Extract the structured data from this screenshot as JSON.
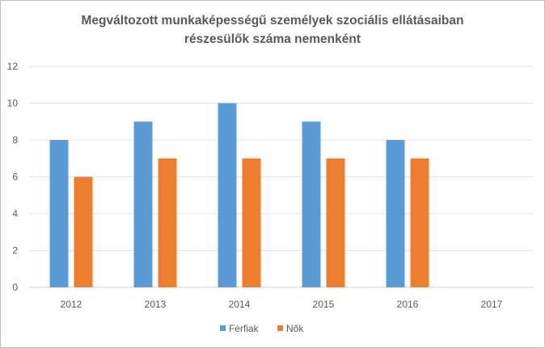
{
  "chart_data": {
    "type": "bar",
    "title": [
      "Megváltozott munkaképességű személyek szociális ellátásaiban",
      "részesülők száma nemenként"
    ],
    "categories": [
      "2012",
      "2013",
      "2014",
      "2015",
      "2016",
      "2017"
    ],
    "series": [
      {
        "name": "Férfiak",
        "color": "#5b9bd5",
        "values": [
          8,
          9,
          10,
          9,
          8,
          null
        ]
      },
      {
        "name": "Nők",
        "color": "#ed7d31",
        "values": [
          6,
          7,
          7,
          7,
          7,
          null
        ]
      }
    ],
    "xlabel": "",
    "ylabel": "",
    "ylim": [
      0,
      12
    ],
    "yticks": [
      "0",
      "2",
      "4",
      "6",
      "8",
      "10",
      "12"
    ],
    "grid": true,
    "legend": "bottom"
  }
}
